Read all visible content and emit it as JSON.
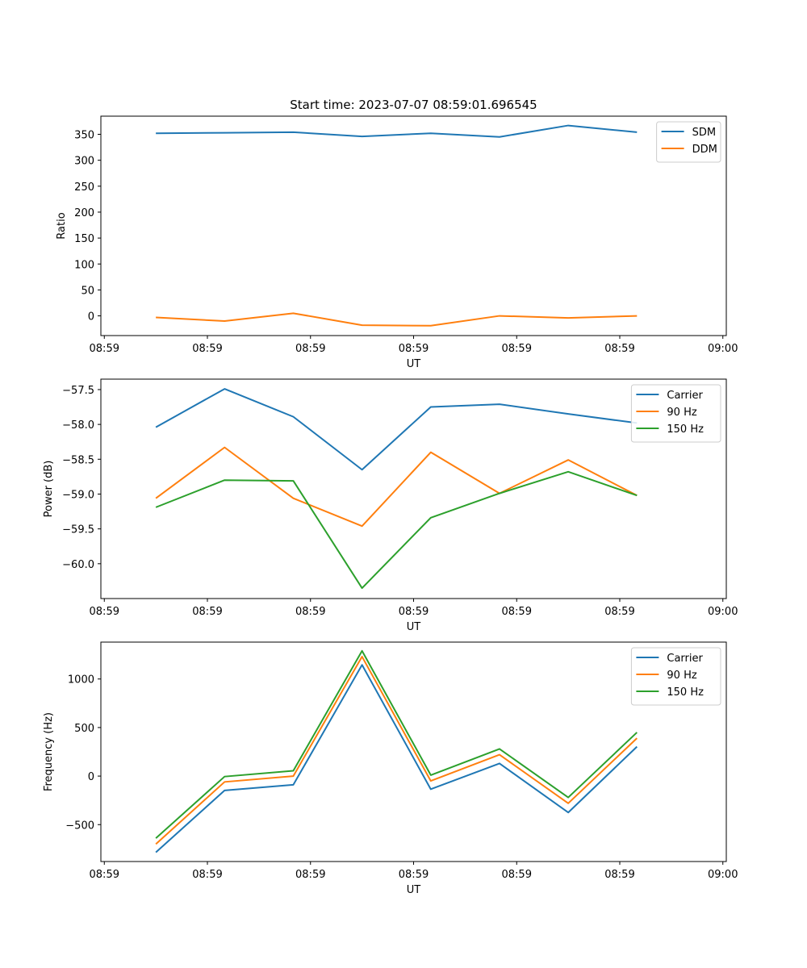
{
  "figure_title": "Start time: 2023-07-07 08:59:01.696545",
  "chart_data": [
    {
      "type": "line",
      "title": "Start time: 2023-07-07 08:59:01.696545",
      "xlabel": "UT",
      "ylabel": "Ratio",
      "x": [
        1,
        2,
        3,
        4,
        5,
        6,
        7,
        8
      ],
      "xlim": [
        0.2,
        9.3
      ],
      "x_ticks": [
        0.25,
        1.75,
        3.25,
        4.75,
        6.25,
        7.75,
        9.25
      ],
      "x_tick_labels": [
        "08:59",
        "08:59",
        "08:59",
        "08:59",
        "08:59",
        "08:59",
        "09:00"
      ],
      "ylim": [
        -38,
        385
      ],
      "y_ticks": [
        0,
        50,
        100,
        150,
        200,
        250,
        300,
        350
      ],
      "y_tick_labels": [
        "0",
        "50",
        "100",
        "150",
        "200",
        "250",
        "300",
        "350"
      ],
      "legend_position": "top-right",
      "series": [
        {
          "name": "SDM",
          "color": "#1f77b4",
          "values": [
            352,
            353,
            354,
            346,
            352,
            345,
            367,
            354
          ]
        },
        {
          "name": "DDM",
          "color": "#ff7f0e",
          "values": [
            -3,
            -10,
            5,
            -18,
            -19,
            0,
            -4,
            0
          ]
        }
      ]
    },
    {
      "type": "line",
      "title": "",
      "xlabel": "UT",
      "ylabel": "Power (dB)",
      "x": [
        1,
        2,
        3,
        4,
        5,
        6,
        7,
        8
      ],
      "xlim": [
        0.2,
        9.3
      ],
      "x_ticks": [
        0.25,
        1.75,
        3.25,
        4.75,
        6.25,
        7.75,
        9.25
      ],
      "x_tick_labels": [
        "08:59",
        "08:59",
        "08:59",
        "08:59",
        "08:59",
        "08:59",
        "09:00"
      ],
      "ylim": [
        -60.5,
        -57.35
      ],
      "y_ticks": [
        -60.0,
        -59.5,
        -59.0,
        -58.5,
        -58.0,
        -57.5
      ],
      "y_tick_labels": [
        "−60.0",
        "−59.5",
        "−59.0",
        "−58.5",
        "−58.0",
        "−57.5"
      ],
      "legend_position": "top-right",
      "series": [
        {
          "name": "Carrier",
          "color": "#1f77b4",
          "values": [
            -58.04,
            -57.49,
            -57.89,
            -58.65,
            -57.75,
            -57.71,
            -57.85,
            -57.98
          ]
        },
        {
          "name": "90 Hz",
          "color": "#ff7f0e",
          "values": [
            -59.06,
            -58.33,
            -59.06,
            -59.46,
            -58.4,
            -58.99,
            -58.51,
            -59.02
          ]
        },
        {
          "name": "150 Hz",
          "color": "#2ca02c",
          "values": [
            -59.19,
            -58.8,
            -58.81,
            -60.35,
            -59.34,
            -58.99,
            -58.68,
            -59.02
          ]
        }
      ]
    },
    {
      "type": "line",
      "title": "",
      "xlabel": "UT",
      "ylabel": "Frequency (Hz)",
      "x": [
        1,
        2,
        3,
        4,
        5,
        6,
        7,
        8
      ],
      "xlim": [
        0.2,
        9.3
      ],
      "x_ticks": [
        0.25,
        1.75,
        3.25,
        4.75,
        6.25,
        7.75,
        9.25
      ],
      "x_tick_labels": [
        "08:59",
        "08:59",
        "08:59",
        "08:59",
        "08:59",
        "08:59",
        "09:00"
      ],
      "ylim": [
        -880,
        1380
      ],
      "y_ticks": [
        -500,
        0,
        500,
        1000
      ],
      "y_tick_labels": [
        "−500",
        "0",
        "500",
        "1000"
      ],
      "legend_position": "top-right",
      "series": [
        {
          "name": "Carrier",
          "color": "#1f77b4",
          "values": [
            -785,
            -148,
            -90,
            1145,
            -135,
            130,
            -375,
            303
          ]
        },
        {
          "name": "90 Hz",
          "color": "#ff7f0e",
          "values": [
            -700,
            -60,
            0,
            1230,
            -50,
            220,
            -280,
            390
          ]
        },
        {
          "name": "150 Hz",
          "color": "#2ca02c",
          "values": [
            -640,
            -5,
            55,
            1290,
            10,
            280,
            -220,
            450
          ]
        }
      ]
    }
  ]
}
